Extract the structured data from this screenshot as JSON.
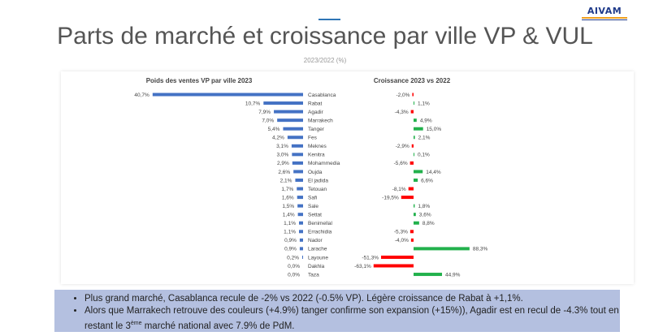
{
  "header": {
    "title": "Parts de marché et croissance par ville VP & VUL",
    "subtitle": "2023/2022 (%)",
    "logo": "AIVAM"
  },
  "colors": {
    "share_bar": "#4472c4",
    "growth_positive": "#22b14c",
    "growth_negative": "#ff0000",
    "notes_bg": "#b4c0e0"
  },
  "chart_data": [
    {
      "type": "bar",
      "orientation": "horizontal",
      "title": "Poids des ventes VP par ville 2023",
      "categories": [
        "Casablanca",
        "Rabat",
        "Agadir",
        "Marrakech",
        "Tanger",
        "Fes",
        "Meknes",
        "Kenitra",
        "Mohammedia",
        "Oujda",
        "El jadida",
        "Tetouan",
        "Safi",
        "Sale",
        "Settat",
        "Benimellal",
        "Errachidia",
        "Nador",
        "Larache",
        "Layoune",
        "Dakhla",
        "Taza"
      ],
      "values": [
        40.7,
        10.7,
        7.9,
        7.0,
        5.4,
        4.2,
        3.1,
        3.0,
        2.9,
        2.6,
        2.1,
        1.7,
        1.6,
        1.5,
        1.4,
        1.1,
        1.1,
        0.9,
        0.9,
        0.2,
        0.0,
        0.0
      ],
      "labels": [
        "40,7%",
        "10,7%",
        "7,9%",
        "7,0%",
        "5,4%",
        "4,2%",
        "3,1%",
        "3,0%",
        "2,9%",
        "2,6%",
        "2,1%",
        "1,7%",
        "1,6%",
        "1,5%",
        "1,4%",
        "1,1%",
        "1,1%",
        "0,9%",
        "0,9%",
        "0,2%",
        "0,0%",
        "0,0%"
      ]
    },
    {
      "type": "bar",
      "orientation": "horizontal",
      "title": "Croissance 2023 vs 2022",
      "values": [
        -2.0,
        1.1,
        -4.3,
        4.9,
        15.0,
        2.1,
        -2.9,
        0.1,
        -5.6,
        14.4,
        6.6,
        -8.1,
        -19.5,
        1.8,
        3.6,
        8.8,
        -5.3,
        -4.0,
        88.3,
        -51.3,
        -63.1,
        44.9
      ],
      "labels": [
        "-2,0%",
        "1,1%",
        "-4,3%",
        "4,9%",
        "15,0%",
        "2,1%",
        "-2,9%",
        "0,1%",
        "-5,6%",
        "14,4%",
        "6,6%",
        "-8,1%",
        "-19,5%",
        "1,8%",
        "3,6%",
        "8,8%",
        "-5,3%",
        "-4,0%",
        "88,3%",
        "-51,3%",
        "-63,1%",
        "44,9%"
      ]
    }
  ],
  "notes": {
    "bullet1": "Plus grand marché, Casablanca recule de -2% vs 2022 (-0.5% VP). Légère croissance de Rabat à +1,1%.",
    "bullet2_a": "Alors que Marrakech retrouve des couleurs (+4.9%) tanger confirme son expansion (+15%)), Agadir est en recul de -4.3% tout en restant le 3",
    "bullet2_sup": "ème",
    "bullet2_b": " marché national avec 7.9% de PdM."
  }
}
